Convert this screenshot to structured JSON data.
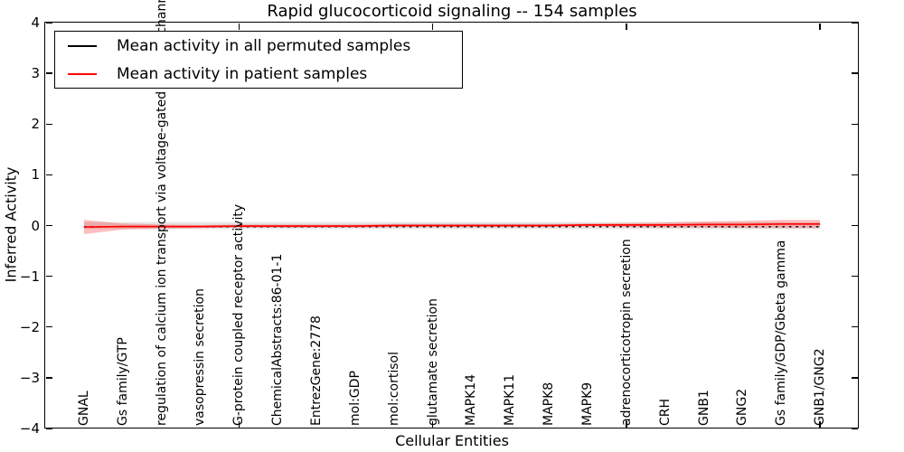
{
  "figure": {
    "title": "Rapid glucocorticoid signaling -- 154 samples",
    "xlabel": "Cellular Entities",
    "ylabel": "Inferred Activity"
  },
  "legend": {
    "items": [
      {
        "label": "Mean activity in all permuted samples",
        "color": "#000000"
      },
      {
        "label": "Mean activity in patient samples",
        "color": "#ff0000"
      }
    ]
  },
  "chart_data": {
    "type": "line",
    "title": "Rapid glucocorticoid signaling -- 154 samples",
    "xlabel": "Cellular Entities",
    "ylabel": "Inferred Activity",
    "xlim": [
      0,
      21
    ],
    "ylim": [
      -4,
      4
    ],
    "grid": false,
    "legend_position": "upper left",
    "ytick_labels": [
      "4",
      "3",
      "2",
      "1",
      "0",
      "−1",
      "−2",
      "−3",
      "−4"
    ],
    "yticks": [
      4,
      3,
      2,
      1,
      0,
      -1,
      -2,
      -3,
      -4
    ],
    "xtick_values": [
      5,
      10,
      15,
      20
    ],
    "x_values": [
      1,
      2,
      3,
      4,
      5,
      6,
      7,
      8,
      9,
      10,
      11,
      12,
      13,
      14,
      15,
      16,
      17,
      18,
      19,
      20
    ],
    "categories": [
      "GNAL",
      "Gs family/GTP",
      "regulation of calcium ion transport via voltage-gated calcium channel",
      "vasopressin secretion",
      "G-protein coupled receptor activity",
      "ChemicalAbstracts:86-01-1",
      "EntrezGene:2778",
      "mol:GDP",
      "mol:cortisol",
      "glutamate secretion",
      "MAPK14",
      "MAPK11",
      "MAPK8",
      "MAPK9",
      "adrenocorticotropin secretion",
      "CRH",
      "GNB1",
      "GNG2",
      "Gs family/GDP/Gbeta gamma",
      "GNB1/GNG2"
    ],
    "series": [
      {
        "name": "Mean activity in all permuted samples",
        "color": "#000000",
        "style": "dashed",
        "values": [
          0,
          0,
          0,
          0,
          0,
          0,
          0,
          0,
          0,
          0,
          0,
          0,
          0,
          0,
          0,
          0,
          0,
          0,
          0,
          0
        ],
        "band_halfwidth": [
          0.07,
          0.07,
          0.07,
          0.07,
          0.07,
          0.07,
          0.07,
          0.07,
          0.07,
          0.07,
          0.07,
          0.07,
          0.07,
          0.07,
          0.07,
          0.07,
          0.07,
          0.07,
          0.07,
          0.07
        ],
        "band_color": "rgba(0,0,0,0.10)"
      },
      {
        "name": "Mean activity in patient samples",
        "color": "#ff0000",
        "style": "solid",
        "values": [
          -0.03,
          -0.02,
          -0.02,
          -0.02,
          -0.01,
          -0.01,
          -0.01,
          -0.01,
          0.0,
          0.0,
          0.0,
          0.0,
          0.0,
          0.01,
          0.01,
          0.01,
          0.02,
          0.02,
          0.03,
          0.03
        ],
        "band_halfwidth": [
          0.14,
          0.06,
          0.04,
          0.03,
          0.03,
          0.03,
          0.03,
          0.03,
          0.03,
          0.03,
          0.03,
          0.03,
          0.03,
          0.03,
          0.04,
          0.05,
          0.06,
          0.07,
          0.08,
          0.08
        ],
        "band_color": "rgba(255,0,0,0.25)"
      }
    ]
  }
}
